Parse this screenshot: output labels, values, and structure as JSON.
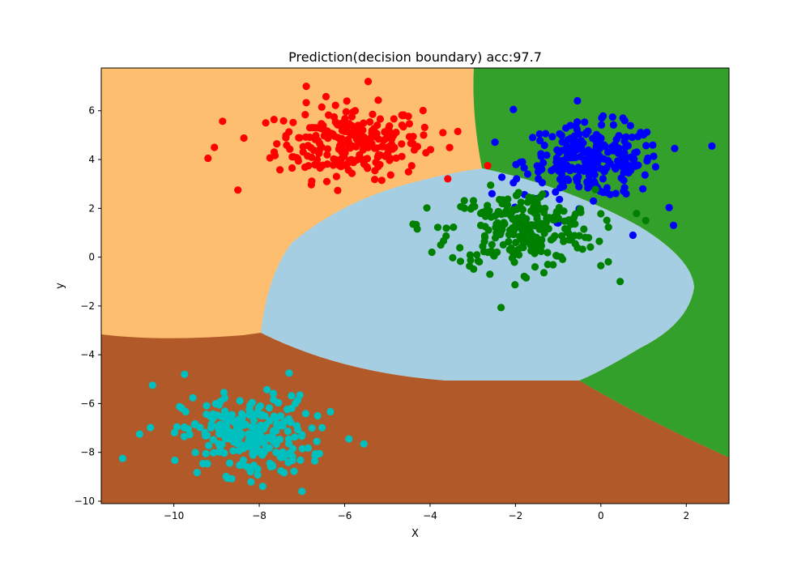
{
  "chart_data": {
    "type": "scatter",
    "title": "Prediction(decision boundary) acc:97.7",
    "xlabel": "X",
    "ylabel": "y",
    "xlim": [
      -11.7,
      3.0
    ],
    "ylim": [
      -10.1,
      7.75
    ],
    "xticks": [
      -10,
      -8,
      -6,
      -4,
      -2,
      0,
      2
    ],
    "yticks": [
      -10,
      -8,
      -6,
      -4,
      -2,
      0,
      2,
      4,
      6
    ],
    "xtick_labels": [
      "−10",
      "−8",
      "−6",
      "−4",
      "−2",
      "0",
      "2"
    ],
    "ytick_labels": [
      "−10",
      "−8",
      "−6",
      "−4",
      "−2",
      "0",
      "2",
      "4",
      "6"
    ],
    "grid": false,
    "legend": "none",
    "regions": [
      {
        "class": "orange",
        "color": "#fdbf6f"
      },
      {
        "class": "brown",
        "color": "#b15928"
      },
      {
        "class": "dark-green",
        "color": "#33a02c"
      },
      {
        "class": "light-blue",
        "color": "#a6cee3"
      }
    ],
    "clusters": [
      {
        "color": "#ff0000",
        "center": [
          -5.9,
          4.7
        ],
        "spread": [
          0.85,
          0.75
        ],
        "count": 250,
        "extra_points": [
          [
            -9.2,
            4.05
          ],
          [
            -9.05,
            4.5
          ],
          [
            -8.5,
            2.75
          ],
          [
            -4.4,
            4.65
          ],
          [
            -4.15,
            5.0
          ],
          [
            -3.7,
            5.1
          ],
          [
            -3.35,
            5.15
          ],
          [
            -2.65,
            3.75
          ],
          [
            -6.9,
            7.0
          ],
          [
            -5.45,
            7.2
          ]
        ]
      },
      {
        "color": "#0000ff",
        "center": [
          -0.2,
          3.95
        ],
        "spread": [
          0.8,
          0.75
        ],
        "count": 250,
        "extra_points": [
          [
            -2.05,
            6.05
          ],
          [
            2.6,
            4.55
          ],
          [
            -2.55,
            2.6
          ],
          [
            1.7,
            1.3
          ],
          [
            0.75,
            0.9
          ],
          [
            -1.0,
            1.4
          ],
          [
            -2.05,
            3.05
          ]
        ]
      },
      {
        "color": "#008000",
        "center": [
          -1.85,
          1.15
        ],
        "spread": [
          0.85,
          0.8
        ],
        "count": 250,
        "extra_points": [
          [
            -4.4,
            1.35
          ],
          [
            -4.3,
            1.15
          ],
          [
            -3.75,
            0.5
          ],
          [
            0.45,
            -1.0
          ],
          [
            0.0,
            -0.35
          ],
          [
            -2.6,
            -0.7
          ],
          [
            1.05,
            1.5
          ],
          [
            -1.75,
            -0.85
          ]
        ]
      },
      {
        "color": "#00bfbf",
        "center": [
          -8.3,
          -7.3
        ],
        "spread": [
          0.75,
          0.8
        ],
        "count": 250,
        "extra_points": [
          [
            -11.2,
            -8.25
          ],
          [
            -10.8,
            -7.25
          ],
          [
            -10.5,
            -5.25
          ],
          [
            -9.75,
            -4.8
          ],
          [
            -7.3,
            -4.75
          ],
          [
            -7.0,
            -9.6
          ],
          [
            -6.7,
            -8.35
          ],
          [
            -6.65,
            -7.55
          ],
          [
            -5.55,
            -7.65
          ],
          [
            -5.9,
            -7.45
          ]
        ]
      }
    ]
  }
}
